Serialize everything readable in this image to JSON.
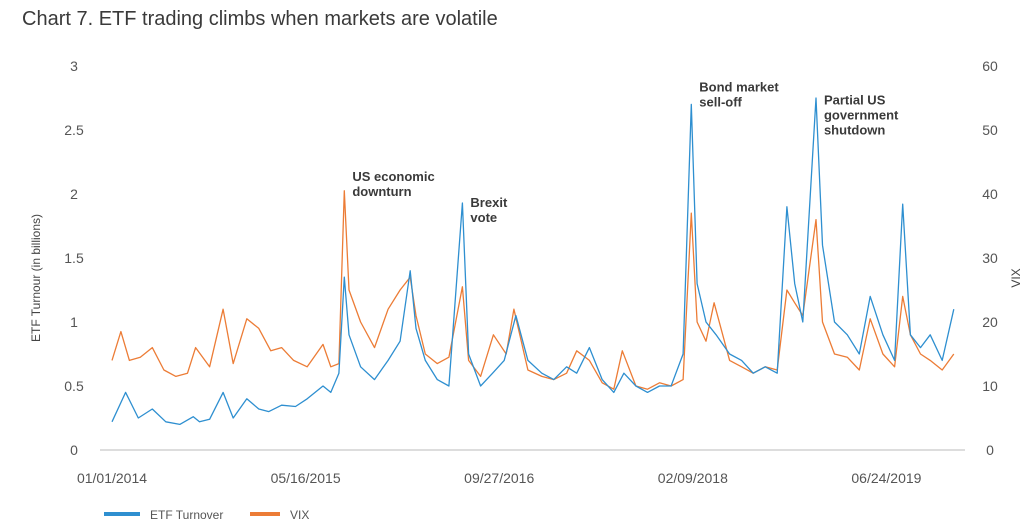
{
  "title": "Chart 7. ETF trading climbs when markets are volatile",
  "colors": {
    "etf": "#2e8fd0",
    "vix": "#ec7c36",
    "axis": "#bbbbbb"
  },
  "chart_data": {
    "type": "line",
    "title": "Chart 7. ETF trading climbs when markets are volatile",
    "xlabel": "",
    "ylabel_left": "ETF Turnour (in billions)",
    "ylabel_right": "VIX",
    "xlim": [
      "2014-01-01",
      "2019-12-31"
    ],
    "ylim_left": [
      0,
      3
    ],
    "ylim_right": [
      0,
      60
    ],
    "yticks_left": [
      "0",
      "0.5",
      "1",
      "1.5",
      "2",
      "2.5",
      "3"
    ],
    "yticks_right": [
      "0",
      "10",
      "20",
      "30",
      "40",
      "50",
      "60"
    ],
    "xticks": [
      {
        "label": "01/01/2014",
        "date": "2014-01-01"
      },
      {
        "label": "05/16/2015",
        "date": "2015-05-16"
      },
      {
        "label": "09/27/2016",
        "date": "2016-09-27"
      },
      {
        "label": "02/09/2018",
        "date": "2018-02-09"
      },
      {
        "label": "06/24/2019",
        "date": "2019-06-24"
      }
    ],
    "grid": false,
    "legend_position": "bottom-left",
    "series": [
      {
        "name": "ETF Turnover",
        "axis": "left",
        "points": [
          [
            "2014-01-01",
            0.22
          ],
          [
            "2014-02-05",
            0.45
          ],
          [
            "2014-03-10",
            0.25
          ],
          [
            "2014-04-15",
            0.32
          ],
          [
            "2014-05-20",
            0.22
          ],
          [
            "2014-06-25",
            0.2
          ],
          [
            "2014-07-30",
            0.26
          ],
          [
            "2014-08-15",
            0.22
          ],
          [
            "2014-09-10",
            0.24
          ],
          [
            "2014-10-15",
            0.45
          ],
          [
            "2014-11-10",
            0.25
          ],
          [
            "2014-12-15",
            0.4
          ],
          [
            "2015-01-15",
            0.32
          ],
          [
            "2015-02-10",
            0.3
          ],
          [
            "2015-03-15",
            0.35
          ],
          [
            "2015-04-20",
            0.34
          ],
          [
            "2015-05-20",
            0.4
          ],
          [
            "2015-06-30",
            0.5
          ],
          [
            "2015-07-20",
            0.45
          ],
          [
            "2015-08-10",
            0.6
          ],
          [
            "2015-08-24",
            1.35
          ],
          [
            "2015-09-05",
            0.9
          ],
          [
            "2015-10-05",
            0.65
          ],
          [
            "2015-11-10",
            0.55
          ],
          [
            "2015-12-15",
            0.7
          ],
          [
            "2016-01-15",
            0.85
          ],
          [
            "2016-02-10",
            1.4
          ],
          [
            "2016-02-25",
            0.95
          ],
          [
            "2016-03-20",
            0.7
          ],
          [
            "2016-04-20",
            0.55
          ],
          [
            "2016-05-20",
            0.5
          ],
          [
            "2016-06-24",
            1.93
          ],
          [
            "2016-07-10",
            0.75
          ],
          [
            "2016-08-10",
            0.5
          ],
          [
            "2016-09-10",
            0.6
          ],
          [
            "2016-10-10",
            0.7
          ],
          [
            "2016-11-09",
            1.05
          ],
          [
            "2016-12-10",
            0.7
          ],
          [
            "2017-01-15",
            0.6
          ],
          [
            "2017-02-15",
            0.55
          ],
          [
            "2017-03-20",
            0.65
          ],
          [
            "2017-04-15",
            0.6
          ],
          [
            "2017-05-18",
            0.8
          ],
          [
            "2017-06-20",
            0.55
          ],
          [
            "2017-07-20",
            0.45
          ],
          [
            "2017-08-15",
            0.6
          ],
          [
            "2017-09-15",
            0.5
          ],
          [
            "2017-10-15",
            0.45
          ],
          [
            "2017-11-15",
            0.5
          ],
          [
            "2017-12-15",
            0.5
          ],
          [
            "2018-01-15",
            0.75
          ],
          [
            "2018-02-05",
            2.7
          ],
          [
            "2018-02-20",
            1.3
          ],
          [
            "2018-03-15",
            1.0
          ],
          [
            "2018-04-10",
            0.9
          ],
          [
            "2018-05-15",
            0.75
          ],
          [
            "2018-06-15",
            0.7
          ],
          [
            "2018-07-15",
            0.6
          ],
          [
            "2018-08-15",
            0.65
          ],
          [
            "2018-09-15",
            0.6
          ],
          [
            "2018-10-10",
            1.9
          ],
          [
            "2018-10-30",
            1.3
          ],
          [
            "2018-11-20",
            1.0
          ],
          [
            "2018-12-24",
            2.75
          ],
          [
            "2019-01-10",
            1.6
          ],
          [
            "2019-02-10",
            1.0
          ],
          [
            "2019-03-15",
            0.9
          ],
          [
            "2019-04-15",
            0.75
          ],
          [
            "2019-05-13",
            1.2
          ],
          [
            "2019-06-15",
            0.9
          ],
          [
            "2019-07-15",
            0.7
          ],
          [
            "2019-08-05",
            1.92
          ],
          [
            "2019-08-25",
            0.9
          ],
          [
            "2019-09-20",
            0.8
          ],
          [
            "2019-10-15",
            0.9
          ],
          [
            "2019-11-15",
            0.7
          ],
          [
            "2019-12-15",
            1.1
          ]
        ]
      },
      {
        "name": "VIX",
        "axis": "right",
        "points": [
          [
            "2014-01-01",
            14.0
          ],
          [
            "2014-01-24",
            18.5
          ],
          [
            "2014-02-15",
            14.0
          ],
          [
            "2014-03-15",
            14.5
          ],
          [
            "2014-04-15",
            16.0
          ],
          [
            "2014-05-15",
            12.5
          ],
          [
            "2014-06-15",
            11.5
          ],
          [
            "2014-07-15",
            12.0
          ],
          [
            "2014-08-05",
            16.0
          ],
          [
            "2014-09-10",
            13.0
          ],
          [
            "2014-10-15",
            22.0
          ],
          [
            "2014-11-10",
            13.5
          ],
          [
            "2014-12-15",
            20.5
          ],
          [
            "2015-01-15",
            19.0
          ],
          [
            "2015-02-15",
            15.5
          ],
          [
            "2015-03-15",
            16.0
          ],
          [
            "2015-04-15",
            14.0
          ],
          [
            "2015-05-20",
            13.0
          ],
          [
            "2015-06-30",
            16.5
          ],
          [
            "2015-07-20",
            13.0
          ],
          [
            "2015-08-10",
            13.5
          ],
          [
            "2015-08-24",
            40.5
          ],
          [
            "2015-09-05",
            25.0
          ],
          [
            "2015-10-05",
            20.0
          ],
          [
            "2015-11-10",
            16.0
          ],
          [
            "2015-12-15",
            22.0
          ],
          [
            "2016-01-15",
            25.0
          ],
          [
            "2016-02-10",
            27.0
          ],
          [
            "2016-02-25",
            21.0
          ],
          [
            "2016-03-20",
            15.0
          ],
          [
            "2016-04-20",
            13.5
          ],
          [
            "2016-05-20",
            14.5
          ],
          [
            "2016-06-24",
            25.5
          ],
          [
            "2016-07-10",
            14.0
          ],
          [
            "2016-08-10",
            11.5
          ],
          [
            "2016-09-12",
            18.0
          ],
          [
            "2016-10-15",
            15.0
          ],
          [
            "2016-11-04",
            22.0
          ],
          [
            "2016-12-10",
            12.5
          ],
          [
            "2017-01-15",
            11.5
          ],
          [
            "2017-02-15",
            11.0
          ],
          [
            "2017-03-20",
            12.0
          ],
          [
            "2017-04-15",
            15.5
          ],
          [
            "2017-05-18",
            14.0
          ],
          [
            "2017-06-20",
            10.5
          ],
          [
            "2017-07-20",
            9.5
          ],
          [
            "2017-08-11",
            15.5
          ],
          [
            "2017-09-15",
            10.0
          ],
          [
            "2017-10-15",
            9.5
          ],
          [
            "2017-11-15",
            10.5
          ],
          [
            "2017-12-15",
            10.0
          ],
          [
            "2018-01-15",
            11.0
          ],
          [
            "2018-02-05",
            37.0
          ],
          [
            "2018-02-20",
            20.0
          ],
          [
            "2018-03-15",
            17.0
          ],
          [
            "2018-04-05",
            23.0
          ],
          [
            "2018-05-15",
            14.0
          ],
          [
            "2018-06-15",
            13.0
          ],
          [
            "2018-07-15",
            12.0
          ],
          [
            "2018-08-15",
            13.0
          ],
          [
            "2018-09-15",
            12.5
          ],
          [
            "2018-10-10",
            25.0
          ],
          [
            "2018-10-30",
            23.0
          ],
          [
            "2018-11-20",
            21.0
          ],
          [
            "2018-12-24",
            36.0
          ],
          [
            "2019-01-10",
            20.0
          ],
          [
            "2019-02-10",
            15.0
          ],
          [
            "2019-03-15",
            14.5
          ],
          [
            "2019-04-15",
            12.5
          ],
          [
            "2019-05-13",
            20.5
          ],
          [
            "2019-06-15",
            15.0
          ],
          [
            "2019-07-15",
            13.0
          ],
          [
            "2019-08-05",
            24.0
          ],
          [
            "2019-08-25",
            18.0
          ],
          [
            "2019-09-20",
            15.0
          ],
          [
            "2019-10-15",
            14.0
          ],
          [
            "2019-11-15",
            12.5
          ],
          [
            "2019-12-15",
            15.0
          ]
        ]
      }
    ],
    "annotations": [
      {
        "lines": [
          "US economic",
          "downturn"
        ],
        "date": "2015-08-24",
        "anchor": "left",
        "value": 2.1
      },
      {
        "lines": [
          "Brexit",
          "vote"
        ],
        "date": "2016-06-24",
        "anchor": "left",
        "value": 1.9
      },
      {
        "lines": [
          "Bond market",
          "sell-off"
        ],
        "date": "2018-02-05",
        "anchor": "left",
        "value": 2.8
      },
      {
        "lines": [
          "Partial US",
          "government",
          "shutdown"
        ],
        "date": "2018-12-24",
        "anchor": "left",
        "value": 2.7
      }
    ]
  },
  "legend": {
    "etf_label": "ETF Turnover",
    "vix_label": "VIX"
  }
}
